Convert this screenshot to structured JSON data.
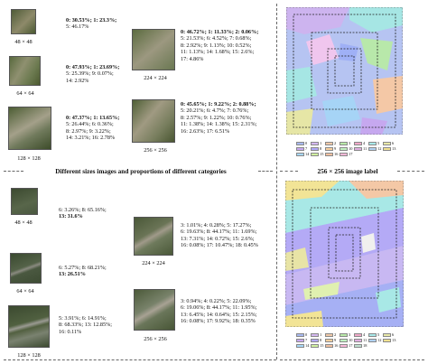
{
  "top": {
    "images": [
      {
        "size": "48 × 48",
        "lines": [
          "0: 30.53%; 1: 23.3%;",
          "5: 46.17%"
        ],
        "bold_prefix": "0: 30.53%;"
      },
      {
        "size": "64 × 64",
        "lines": [
          "0: 47.93%; 1: 23.69%;",
          "5: 25.39%; 9: 0.07%;",
          "14: 2.92%"
        ],
        "bold_prefix": "0: 47.93%;"
      },
      {
        "size": "128 × 128",
        "lines": [
          "0: 47.37%; 1: 13.65%;",
          "5: 26.44%; 6: 0.36%;",
          "8: 2.97%; 9: 3.22%;",
          "14: 3.21%; 16: 2.78%"
        ],
        "bold_prefix": "0: 47.37%;"
      },
      {
        "size": "224 × 224",
        "lines": [
          "0: 46.72%; 1: 11.33%; 2: 0.06%;",
          "5: 21.53%; 6: 4.52%; 7: 0.68%;",
          "8: 2.92%; 9: 1.13%; 10: 0.52%;",
          "11: 1.13%; 14: 1.68%; 15: 2.6%;",
          "17: 4.86%"
        ],
        "bold_prefix": "0: 46.72%;"
      },
      {
        "size": "256 × 256",
        "lines": [
          "0: 45.65%; 1: 9.22%; 2: 0.88%;",
          "5: 20.21%; 6: 4.7%; 7: 0.76%;",
          "8: 2.57%; 9: 1.22%; 10: 0.76%;",
          "11: 1.38%; 14: 1.38%; 15: 2.31%;",
          "16: 2.63%; 17: 6.51%"
        ],
        "bold_prefix": "0: 45.65%;"
      }
    ],
    "caption": "Different sizes images and proportions of different categories",
    "label_caption": "256 × 256 image label"
  },
  "bottom": {
    "images": [
      {
        "size": "48 × 48",
        "lines": [
          "6: 3.26%; 8: 65.16%;",
          "13: 31.6%"
        ],
        "bold_line": 1
      },
      {
        "size": "64 × 64",
        "lines": [
          "6: 5.27%; 8: 68.21%;",
          "13: 26.51%"
        ],
        "bold_line": 1
      },
      {
        "size": "128 × 128",
        "lines": [
          "5: 3.91%; 6: 14.91%;",
          "8: 68.33%; 13: 12.85%;",
          "16: 0.11%"
        ],
        "bold_part": "13: 12.85%;"
      },
      {
        "size": "224 × 224",
        "lines": [
          "3: 1.01%; 4: 0.28%; 5: 17.27%;",
          "6: 19.63%; 8: 44.17%; 11: 1.69%;",
          "13: 7.31%; 14: 0.72%; 15: 2.6%;",
          "16: 0.08%; 17: 10.47%; 18: 0.45%"
        ],
        "bold_part": "13: 7.31%;"
      },
      {
        "size": "256 × 256",
        "lines": [
          "3: 0.94%; 4: 0.22%; 5: 22.09%;",
          "6: 19.06%; 8: 44.17%; 11: 1.95%;",
          "13: 6.45%; 14: 0.64%; 15: 2.15%;",
          "16: 0.08%; 17: 9.92%; 18: 0.35%"
        ],
        "bold_part": "13: 6.45%;"
      }
    ]
  },
  "legend_top": [
    "0",
    "1",
    "2",
    "3",
    "4",
    "5",
    "6",
    "7",
    "8",
    "9",
    "10",
    "11",
    "12",
    "13",
    "14",
    "15",
    "16",
    "17"
  ],
  "legend_bottom": [
    "0",
    "1",
    "2",
    "3",
    "4",
    "5",
    "6",
    "7",
    "8",
    "9",
    "10",
    "11",
    "12",
    "13",
    "14",
    "15",
    "16",
    "17",
    "18"
  ],
  "colors": {
    "c0": "#a8b9f0",
    "c1": "#d4b8f0",
    "c2": "#f0c8a8",
    "c3": "#b8e8a8",
    "c4": "#f0a8c8",
    "c5": "#a8e8e8",
    "c6": "#e8e8a8",
    "c7": "#c8a8f0",
    "c8": "#b0a8f8",
    "c9": "#f8d0a0",
    "c13": "#f0e090",
    "c14": "#a8d8f8",
    "c17": "#f8b8d8",
    "vegetation": "#5a7040",
    "rock": "#8c8c7c"
  }
}
